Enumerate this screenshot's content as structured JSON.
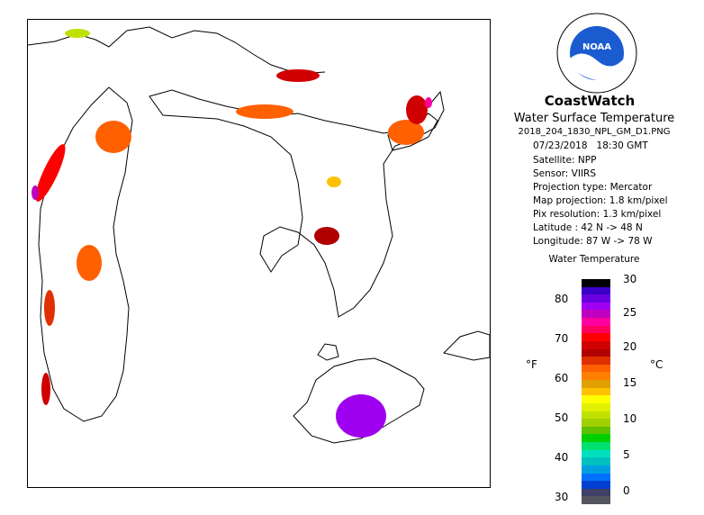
{
  "header": {
    "brand": "CoastWatch",
    "logo_text": "NOAA",
    "product_title": "Water Surface Temperature",
    "filename": "2018_204_1830_NPL_GM_D1.PNG"
  },
  "metadata": {
    "date": "07/23/2018",
    "time": "18:30 GMT",
    "satellite": "Satellite: NPP",
    "sensor": "Sensor: VIIRS",
    "projection_type": "Projection type:  Mercator",
    "map_projection": "Map projection: 1.8 km/pixel",
    "pix_resolution": "Pix resolution: 1.3 km/pixel",
    "latitude": "Latitude : 42 N -> 48 N",
    "longitude": "Longitude: 87 W -> 78 W"
  },
  "legend": {
    "title": "Water Temperature",
    "unit_f": "°F",
    "unit_c": "°C",
    "fahrenheit_ticks": [
      "80",
      "70",
      "60",
      "50",
      "40",
      "30"
    ],
    "celsius_ticks": [
      "30",
      "25",
      "20",
      "15",
      "10",
      "5",
      "0"
    ],
    "colors": [
      "#000000",
      "#3a00c8",
      "#6a00e0",
      "#a000f0",
      "#c000c0",
      "#ff00a0",
      "#ff0060",
      "#ff0000",
      "#d00000",
      "#b00000",
      "#e03000",
      "#ff6000",
      "#ff8000",
      "#e0a000",
      "#ffc000",
      "#ffff00",
      "#e0f000",
      "#c0e000",
      "#a0d000",
      "#60c000",
      "#00d000",
      "#00e070",
      "#00e0c0",
      "#00c0c0",
      "#00a0e0",
      "#0070ff",
      "#0040d0",
      "#404068",
      "#555560"
    ]
  }
}
